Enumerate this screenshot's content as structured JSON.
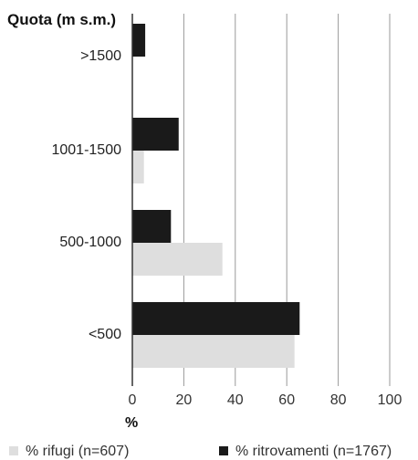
{
  "chart_data": {
    "type": "bar",
    "orientation": "horizontal",
    "title": "Quota (m s.m.)",
    "xlabel": "%",
    "ylabel": "",
    "xlim": [
      0,
      100
    ],
    "xticks": [
      0,
      20,
      40,
      60,
      80,
      100
    ],
    "grid": true,
    "legend_position": "bottom",
    "categories": [
      ">1500",
      "1001-1500",
      "500-1000",
      "<500"
    ],
    "series": [
      {
        "name": "% ritrovamenti (n=1767)",
        "color": "#1a1a1a",
        "values": [
          5,
          18,
          15,
          65
        ]
      },
      {
        "name": "% rifugi (n=607)",
        "color": "#dedede",
        "values": [
          0,
          4.5,
          35,
          63
        ]
      }
    ],
    "legend_order": [
      "% rifugi (n=607)",
      "% ritrovamenti (n=1767)"
    ]
  }
}
